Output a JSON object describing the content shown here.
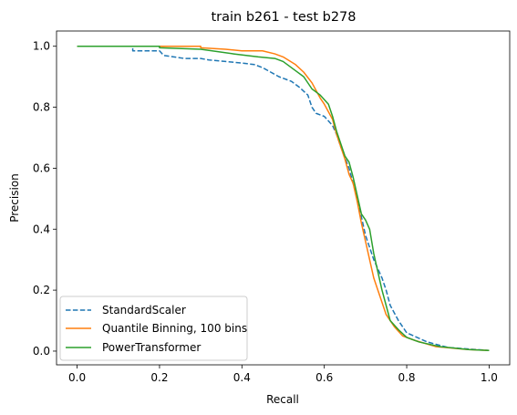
{
  "chart_data": {
    "type": "line",
    "title": "train b261 - test b278",
    "xlabel": "Recall",
    "ylabel": "Precision",
    "xlim": [
      -0.05,
      1.05
    ],
    "ylim": [
      -0.045,
      1.05
    ],
    "x_ticks": [
      {
        "value": 0.0,
        "label": "0.0"
      },
      {
        "value": 0.2,
        "label": "0.2"
      },
      {
        "value": 0.4,
        "label": "0.4"
      },
      {
        "value": 0.6,
        "label": "0.6"
      },
      {
        "value": 0.8,
        "label": "0.8"
      },
      {
        "value": 1.0,
        "label": "1.0"
      }
    ],
    "y_ticks": [
      {
        "value": 0.0,
        "label": "0.0"
      },
      {
        "value": 0.2,
        "label": "0.2"
      },
      {
        "value": 0.4,
        "label": "0.4"
      },
      {
        "value": 0.6,
        "label": "0.6"
      },
      {
        "value": 0.8,
        "label": "0.8"
      },
      {
        "value": 1.0,
        "label": "1.0"
      }
    ],
    "grid": false,
    "legend_position": "lower-left",
    "series": [
      {
        "name": "StandardScaler",
        "color": "#1f77b4",
        "style": "dashed",
        "points": [
          [
            0.0,
            1.0
          ],
          [
            0.135,
            1.0
          ],
          [
            0.135,
            0.985
          ],
          [
            0.2,
            0.985
          ],
          [
            0.21,
            0.97
          ],
          [
            0.26,
            0.96
          ],
          [
            0.3,
            0.96
          ],
          [
            0.32,
            0.955
          ],
          [
            0.36,
            0.95
          ],
          [
            0.4,
            0.945
          ],
          [
            0.43,
            0.94
          ],
          [
            0.45,
            0.93
          ],
          [
            0.47,
            0.915
          ],
          [
            0.49,
            0.9
          ],
          [
            0.52,
            0.885
          ],
          [
            0.54,
            0.865
          ],
          [
            0.56,
            0.84
          ],
          [
            0.57,
            0.8
          ],
          [
            0.58,
            0.78
          ],
          [
            0.6,
            0.77
          ],
          [
            0.62,
            0.74
          ],
          [
            0.63,
            0.71
          ],
          [
            0.64,
            0.67
          ],
          [
            0.66,
            0.6
          ],
          [
            0.67,
            0.55
          ],
          [
            0.68,
            0.5
          ],
          [
            0.69,
            0.44
          ],
          [
            0.7,
            0.38
          ],
          [
            0.72,
            0.3
          ],
          [
            0.74,
            0.24
          ],
          [
            0.75,
            0.2
          ],
          [
            0.76,
            0.15
          ],
          [
            0.78,
            0.1
          ],
          [
            0.8,
            0.06
          ],
          [
            0.85,
            0.03
          ],
          [
            0.9,
            0.012
          ],
          [
            1.0,
            0.002
          ]
        ]
      },
      {
        "name": "Quantile Binning, 100 bins",
        "color": "#ff7f0e",
        "style": "solid",
        "points": [
          [
            0.0,
            1.0
          ],
          [
            0.19,
            1.0
          ],
          [
            0.3,
            1.0
          ],
          [
            0.3,
            0.995
          ],
          [
            0.36,
            0.99
          ],
          [
            0.4,
            0.985
          ],
          [
            0.45,
            0.985
          ],
          [
            0.48,
            0.975
          ],
          [
            0.5,
            0.965
          ],
          [
            0.53,
            0.94
          ],
          [
            0.55,
            0.915
          ],
          [
            0.57,
            0.88
          ],
          [
            0.59,
            0.83
          ],
          [
            0.6,
            0.81
          ],
          [
            0.62,
            0.76
          ],
          [
            0.63,
            0.71
          ],
          [
            0.65,
            0.63
          ],
          [
            0.66,
            0.58
          ],
          [
            0.67,
            0.55
          ],
          [
            0.68,
            0.49
          ],
          [
            0.69,
            0.42
          ],
          [
            0.7,
            0.36
          ],
          [
            0.71,
            0.3
          ],
          [
            0.72,
            0.24
          ],
          [
            0.73,
            0.2
          ],
          [
            0.74,
            0.16
          ],
          [
            0.75,
            0.12
          ],
          [
            0.77,
            0.08
          ],
          [
            0.79,
            0.05
          ],
          [
            0.82,
            0.035
          ],
          [
            0.87,
            0.015
          ],
          [
            0.95,
            0.005
          ],
          [
            1.0,
            0.002
          ]
        ]
      },
      {
        "name": "PowerTransformer",
        "color": "#2ca02c",
        "style": "solid",
        "points": [
          [
            0.0,
            1.0
          ],
          [
            0.2,
            1.0
          ],
          [
            0.2,
            0.995
          ],
          [
            0.3,
            0.99
          ],
          [
            0.38,
            0.975
          ],
          [
            0.44,
            0.965
          ],
          [
            0.48,
            0.96
          ],
          [
            0.5,
            0.95
          ],
          [
            0.53,
            0.92
          ],
          [
            0.55,
            0.9
          ],
          [
            0.57,
            0.86
          ],
          [
            0.59,
            0.84
          ],
          [
            0.61,
            0.81
          ],
          [
            0.62,
            0.77
          ],
          [
            0.63,
            0.72
          ],
          [
            0.64,
            0.68
          ],
          [
            0.65,
            0.64
          ],
          [
            0.66,
            0.62
          ],
          [
            0.67,
            0.57
          ],
          [
            0.68,
            0.51
          ],
          [
            0.69,
            0.45
          ],
          [
            0.7,
            0.43
          ],
          [
            0.71,
            0.4
          ],
          [
            0.72,
            0.32
          ],
          [
            0.73,
            0.26
          ],
          [
            0.74,
            0.2
          ],
          [
            0.75,
            0.15
          ],
          [
            0.76,
            0.1
          ],
          [
            0.78,
            0.07
          ],
          [
            0.8,
            0.045
          ],
          [
            0.83,
            0.03
          ],
          [
            0.88,
            0.015
          ],
          [
            0.95,
            0.005
          ],
          [
            1.0,
            0.002
          ]
        ]
      }
    ]
  }
}
